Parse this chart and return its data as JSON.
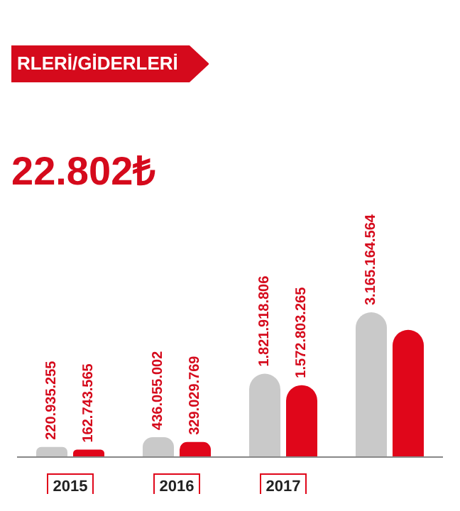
{
  "chart_data": {
    "type": "bar",
    "title": "RLERİ/GİDERLERİ",
    "annotations": [
      "22.802₺"
    ],
    "categories": [
      "2015",
      "2016",
      "2017",
      null
    ],
    "series": [
      {
        "color": "#c9c9c9",
        "values": [
          220935255,
          436055002,
          1821918806,
          3165164564
        ],
        "value_labels": [
          "220.935.255",
          "436.055.002",
          "1.821.918.806",
          "3.165.164.564"
        ]
      },
      {
        "color": "#e0061a",
        "values": [
          162743565,
          329029769,
          1572803265,
          2780000000
        ],
        "value_labels": [
          "162.743.565",
          "329.029.769",
          "1.572.803.265",
          null
        ]
      }
    ],
    "legend": false,
    "grid": false
  }
}
